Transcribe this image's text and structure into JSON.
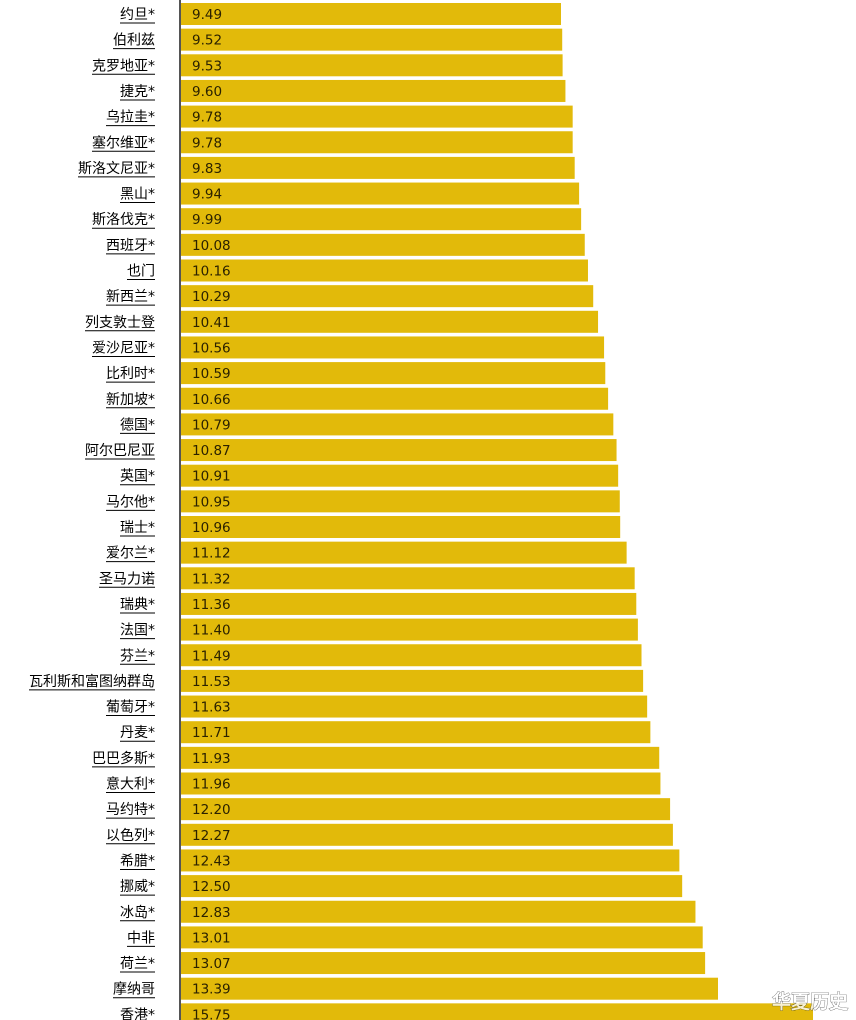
{
  "chart_data": {
    "type": "bar",
    "orientation": "horizontal",
    "title": "",
    "xlabel": "",
    "ylabel": "",
    "grid": false,
    "legend": "none",
    "bar_color": "#e2ba0a",
    "categories": [
      "约旦*",
      "伯利兹",
      "克罗地亚*",
      "捷克*",
      "乌拉圭*",
      "塞尔维亚*",
      "斯洛文尼亚*",
      "黑山*",
      "斯洛伐克*",
      "西班牙*",
      "也门",
      "新西兰*",
      "列支敦士登",
      "爱沙尼亚*",
      "比利时*",
      "新加坡*",
      "德国*",
      "阿尔巴尼亚",
      "英国*",
      "马尔他*",
      "瑞士*",
      "爱尔兰*",
      "圣马力诺",
      "瑞典*",
      "法国*",
      "芬兰*",
      "瓦利斯和富图纳群岛",
      "葡萄牙*",
      "丹麦*",
      "巴巴多斯*",
      "意大利*",
      "马约特*",
      "以色列*",
      "希腊*",
      "挪威*",
      "冰岛*",
      "中非",
      "荷兰*",
      "摩纳哥",
      "香港*"
    ],
    "values": [
      9.49,
      9.52,
      9.53,
      9.6,
      9.78,
      9.78,
      9.83,
      9.94,
      9.99,
      10.08,
      10.16,
      10.29,
      10.41,
      10.56,
      10.59,
      10.66,
      10.79,
      10.87,
      10.91,
      10.95,
      10.96,
      11.12,
      11.32,
      11.36,
      11.4,
      11.49,
      11.53,
      11.63,
      11.71,
      11.93,
      11.96,
      12.2,
      12.27,
      12.43,
      12.5,
      12.83,
      13.01,
      13.07,
      13.39,
      15.75
    ],
    "value_labels": [
      "9.49",
      "9.52",
      "9.53",
      "9.60",
      "9.78",
      "9.78",
      "9.83",
      "9.94",
      "9.99",
      "10.08",
      "10.16",
      "10.29",
      "10.41",
      "10.56",
      "10.59",
      "10.66",
      "10.79",
      "10.87",
      "10.91",
      "10.95",
      "10.96",
      "11.12",
      "11.32",
      "11.36",
      "11.40",
      "11.49",
      "11.53",
      "11.63",
      "11.71",
      "11.93",
      "11.96",
      "12.20",
      "12.27",
      "12.43",
      "12.50",
      "12.83",
      "13.01",
      "13.07",
      "13.39",
      "15.75"
    ]
  },
  "watermark": {
    "text": "华夏历史"
  }
}
